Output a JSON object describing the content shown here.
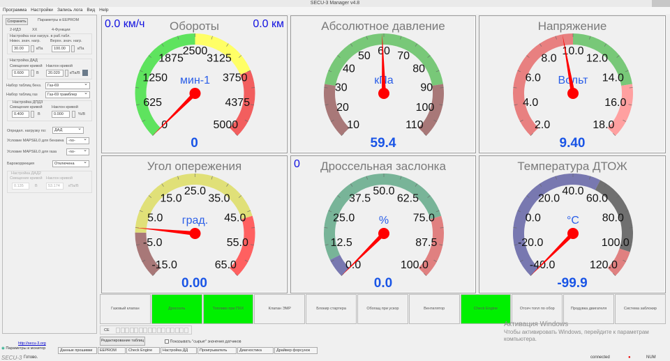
{
  "window": {
    "title": "SECU-3 Manager v4.8"
  },
  "menu": [
    "Программа",
    "Настройки",
    "Запись лога",
    "Вид",
    "Help"
  ],
  "sidebar": {
    "save": "Сохранить",
    "header": "Параметры в EEPROM",
    "tabs": [
      "2-ИДЗ",
      "ХХ",
      "4-Функции"
    ],
    "load_axis": {
      "title": "Настройка оси нагруз. в раб.табл.",
      "min_label": "Нижн. знач. нагр.",
      "min": "30.00",
      "max_label": "Верхн. знач. нагр.",
      "max": "100.00",
      "unit": "кПа"
    },
    "map": {
      "title": "Настройка ДАД",
      "offset_label": "Смещение кривой",
      "offset": "0.600",
      "offset_unit": "В",
      "slope_label": "Наклон кривой",
      "slope": "20.020",
      "slope_unit": "кПа/В"
    },
    "petrol_set": {
      "label": "Набор таблиц бенз.",
      "value": "Газ-69"
    },
    "gas_set": {
      "label": "Набор таблиц газ",
      "value": "Газ-69 трамблер"
    },
    "tps": {
      "title": "Настройка ДПДЗ",
      "offset_label": "Смещение кривой",
      "offset": "0.400",
      "offset_unit": "В",
      "slope_label": "Наклон кривой",
      "slope": "0.000",
      "slope_unit": "%/В"
    },
    "load_by": {
      "label": "Определ. нагрузку по:",
      "value": "ДАД"
    },
    "mapsel_petrol": {
      "label": "Условие MAPSEL0 для бензина",
      "value": "-no-"
    },
    "mapsel_gas": {
      "label": "Условие MAPSEL0 для газа",
      "value": "-no-"
    },
    "baro": {
      "label": "Барокоррекция",
      "value": "Отключена"
    },
    "map2": {
      "title": "Настройка ДАД2",
      "offset_label": "Смещение кривой",
      "offset": "0.135",
      "offset_unit": "В",
      "slope_label": "Наклон кривой",
      "slope": "53.174",
      "slope_unit": "кПа/В"
    },
    "link": "http://secu-3.org",
    "bottom_tab": "Параметры и монитор"
  },
  "gauges": [
    {
      "title": "Обороты",
      "unit": "мин-1",
      "value": "0",
      "needle": 0,
      "min": 0,
      "max": 5000,
      "labels": [
        "0",
        "625",
        "1250",
        "1875",
        "2500",
        "3125",
        "3750",
        "4375",
        "5000"
      ],
      "corner_left": "0.0 км/ч",
      "corner_right": "0.0 км",
      "bands": [
        [
          0,
          0.5,
          "#5ee35e"
        ],
        [
          0.5,
          0.75,
          "#ffff66"
        ],
        [
          0.75,
          1,
          "#f25e5e"
        ]
      ]
    },
    {
      "title": "Абсолютное давление",
      "unit": "кПа",
      "value": "59.4",
      "needle": 59.4,
      "min": 10,
      "max": 110,
      "labels": [
        "10",
        "20",
        "30",
        "40",
        "50",
        "60",
        "70",
        "80",
        "90",
        "100",
        "110"
      ],
      "bands": [
        [
          0,
          0.2,
          "#a87878"
        ],
        [
          0.2,
          0.8,
          "#78c878"
        ],
        [
          0.8,
          1,
          "#a87878"
        ]
      ]
    },
    {
      "title": "Напряжение",
      "unit": "Вольт",
      "value": "9.40",
      "needle": 9.4,
      "min": 2,
      "max": 18,
      "labels": [
        "2.0",
        "4.0",
        "6.0",
        "8.0",
        "10.0",
        "12.0",
        "14.0",
        "16.0",
        "18.0"
      ],
      "bands": [
        [
          0,
          0.5,
          "#e88080"
        ],
        [
          0.5,
          0.8,
          "#78c878"
        ],
        [
          0.8,
          1,
          "#ffa0a0"
        ]
      ]
    },
    {
      "title": "Угол опережения",
      "unit": "град.",
      "value": "0.00",
      "needle": 0,
      "min": -15,
      "max": 65,
      "labels": [
        "-15.0",
        "-5.0",
        "5.0",
        "15.0",
        "25.0",
        "35.0",
        "45.0",
        "55.0",
        "65.0"
      ],
      "bands": [
        [
          0,
          0.17,
          "#a87878"
        ],
        [
          0.17,
          0.77,
          "#e0e078"
        ],
        [
          0.77,
          1,
          "#ff6060"
        ]
      ]
    },
    {
      "title": "Дроссельная заслонка",
      "unit": "%",
      "value": "0.0",
      "needle": 0,
      "min": 0,
      "max": 100,
      "labels": [
        "0.0",
        "12.5",
        "25.0",
        "37.5",
        "50.0",
        "62.5",
        "75.0",
        "87.5",
        "100.0"
      ],
      "corner_left": "0",
      "bands": [
        [
          0,
          0.07,
          "#7878b0"
        ],
        [
          0.07,
          0.77,
          "#78b498"
        ],
        [
          0.77,
          1,
          "#e08080"
        ]
      ]
    },
    {
      "title": "Температура ДТОЖ",
      "unit": "°C",
      "value": "-99.9",
      "needle": -40,
      "min": -40,
      "max": 120,
      "labels": [
        "-40.0",
        "-20.0",
        "0.0",
        "20.0",
        "40.0",
        "60.0",
        "80.0",
        "100.0",
        "120.0"
      ],
      "bands": [
        [
          0,
          0.6,
          "#7878b0"
        ],
        [
          0.6,
          0.9,
          "#707070"
        ],
        [
          0.9,
          1,
          "#e08080"
        ]
      ]
    }
  ],
  "indicators": [
    {
      "label": "Газовый клапан",
      "on": false
    },
    {
      "label": "Дроссель",
      "on": true
    },
    {
      "label": "Топливо при ПХХ",
      "on": true
    },
    {
      "label": "Клапан ЭМР",
      "on": false
    },
    {
      "label": "Блокир стартера",
      "on": false
    },
    {
      "label": "Обогащ при ускор",
      "on": false
    },
    {
      "label": "Вентилятор",
      "on": false
    },
    {
      "label": "Check Engine",
      "on": true
    },
    {
      "label": "Отсеч топл по обор",
      "on": false
    },
    {
      "label": "Продувка двигателя",
      "on": false
    },
    {
      "label": "Система заблокир",
      "on": false
    }
  ],
  "ce_label": "CE",
  "edit_tables": "Редактирование таблиц",
  "raw_checkbox": {
    "label": "Показывать \"сырые\" значения датчиков",
    "checked": false
  },
  "watermark": {
    "title": "Активация Windows",
    "text": "Чтобы активировать Windows, перейдите к параметрам компьютера."
  },
  "tabs": [
    "Данные прошивки",
    "EEPROM",
    "Check Engine",
    "Настройка ДД",
    "Проигрыватель",
    "Диагностика",
    "Драйвер форсунок"
  ],
  "status": {
    "logo": "SECU-3",
    "text": "Готово.",
    "connection": "connected",
    "num": "NUM"
  }
}
